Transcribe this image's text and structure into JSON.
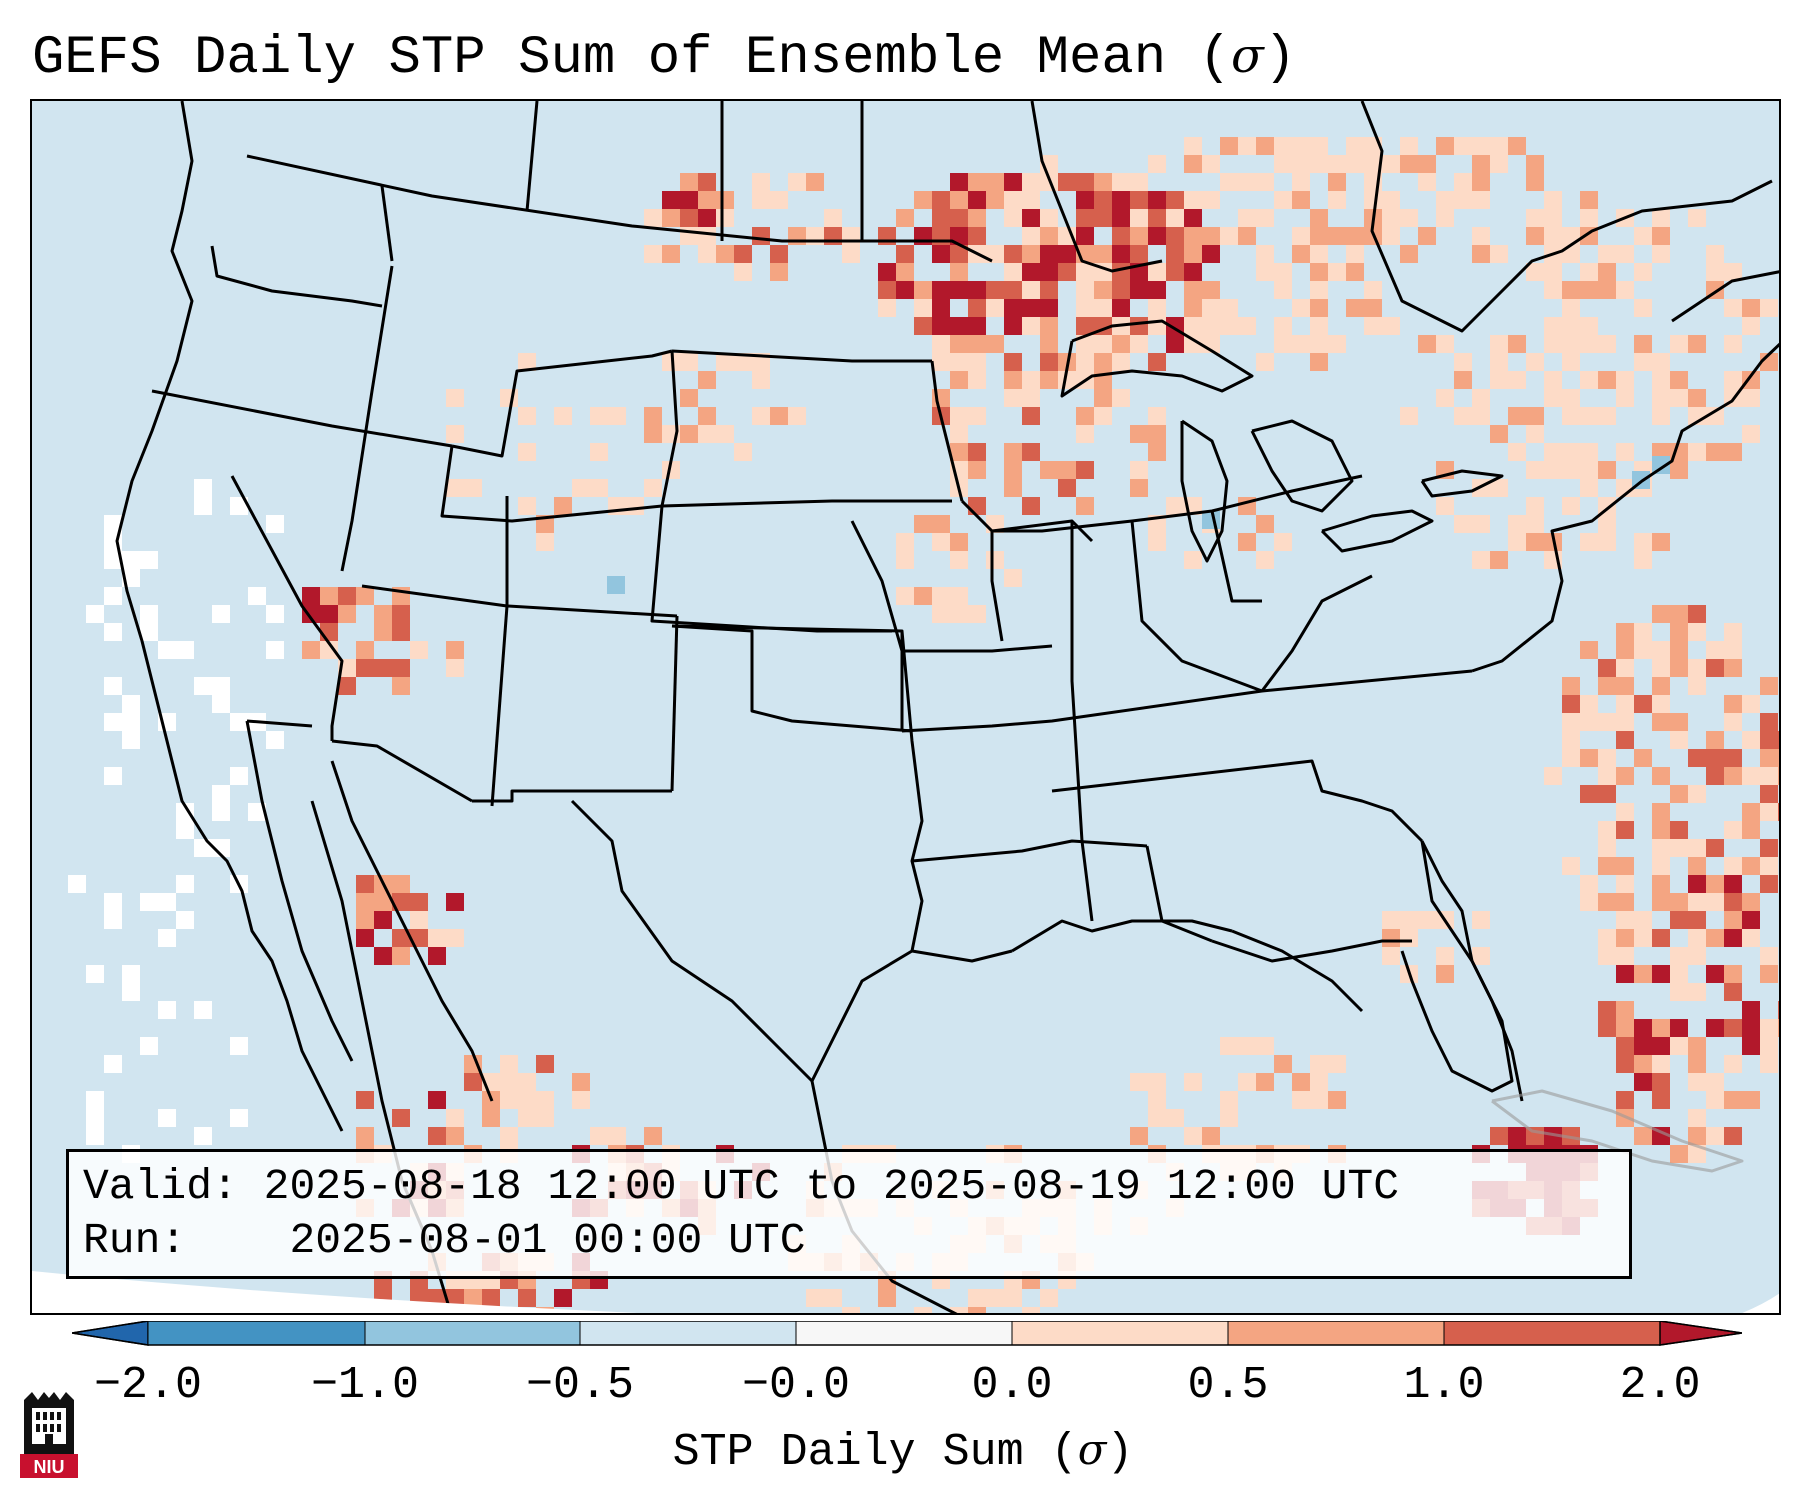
{
  "title": {
    "text": "GEFS Daily STP Sum of Ensemble Mean (",
    "sigma": "σ",
    "close": ")"
  },
  "info": {
    "valid_label": "Valid:",
    "valid_value": "2025-08-18 12:00 UTC to 2025-08-19 12:00 UTC",
    "run_label": "Run:",
    "run_value": "2025-08-01 00:00 UTC"
  },
  "colorbar": {
    "ticks": [
      "−2.0",
      "−1.0",
      "−0.5",
      "−0.0",
      "0.0",
      "0.5",
      "1.0",
      "2.0"
    ],
    "label_text": "STP Daily Sum (",
    "label_sigma": "σ",
    "label_close": ")",
    "colors": [
      "#2166ac",
      "#4393c3",
      "#92c5de",
      "#d1e5f0",
      "#f7f7f7",
      "#fddbc7",
      "#f4a582",
      "#d6604d",
      "#b2182b"
    ]
  },
  "logo": {
    "text": "NIU",
    "icon": "castle-logo-icon"
  },
  "map": {
    "ocean_color": "#d1e5f0",
    "land_neutral": "#d1e5f0",
    "anomaly_colors": {
      "low": "#fddbc7",
      "mid": "#f4a582",
      "high": "#d6604d",
      "extreme": "#b2182b",
      "white": "#ffffff",
      "blue": "#92c5de"
    }
  }
}
